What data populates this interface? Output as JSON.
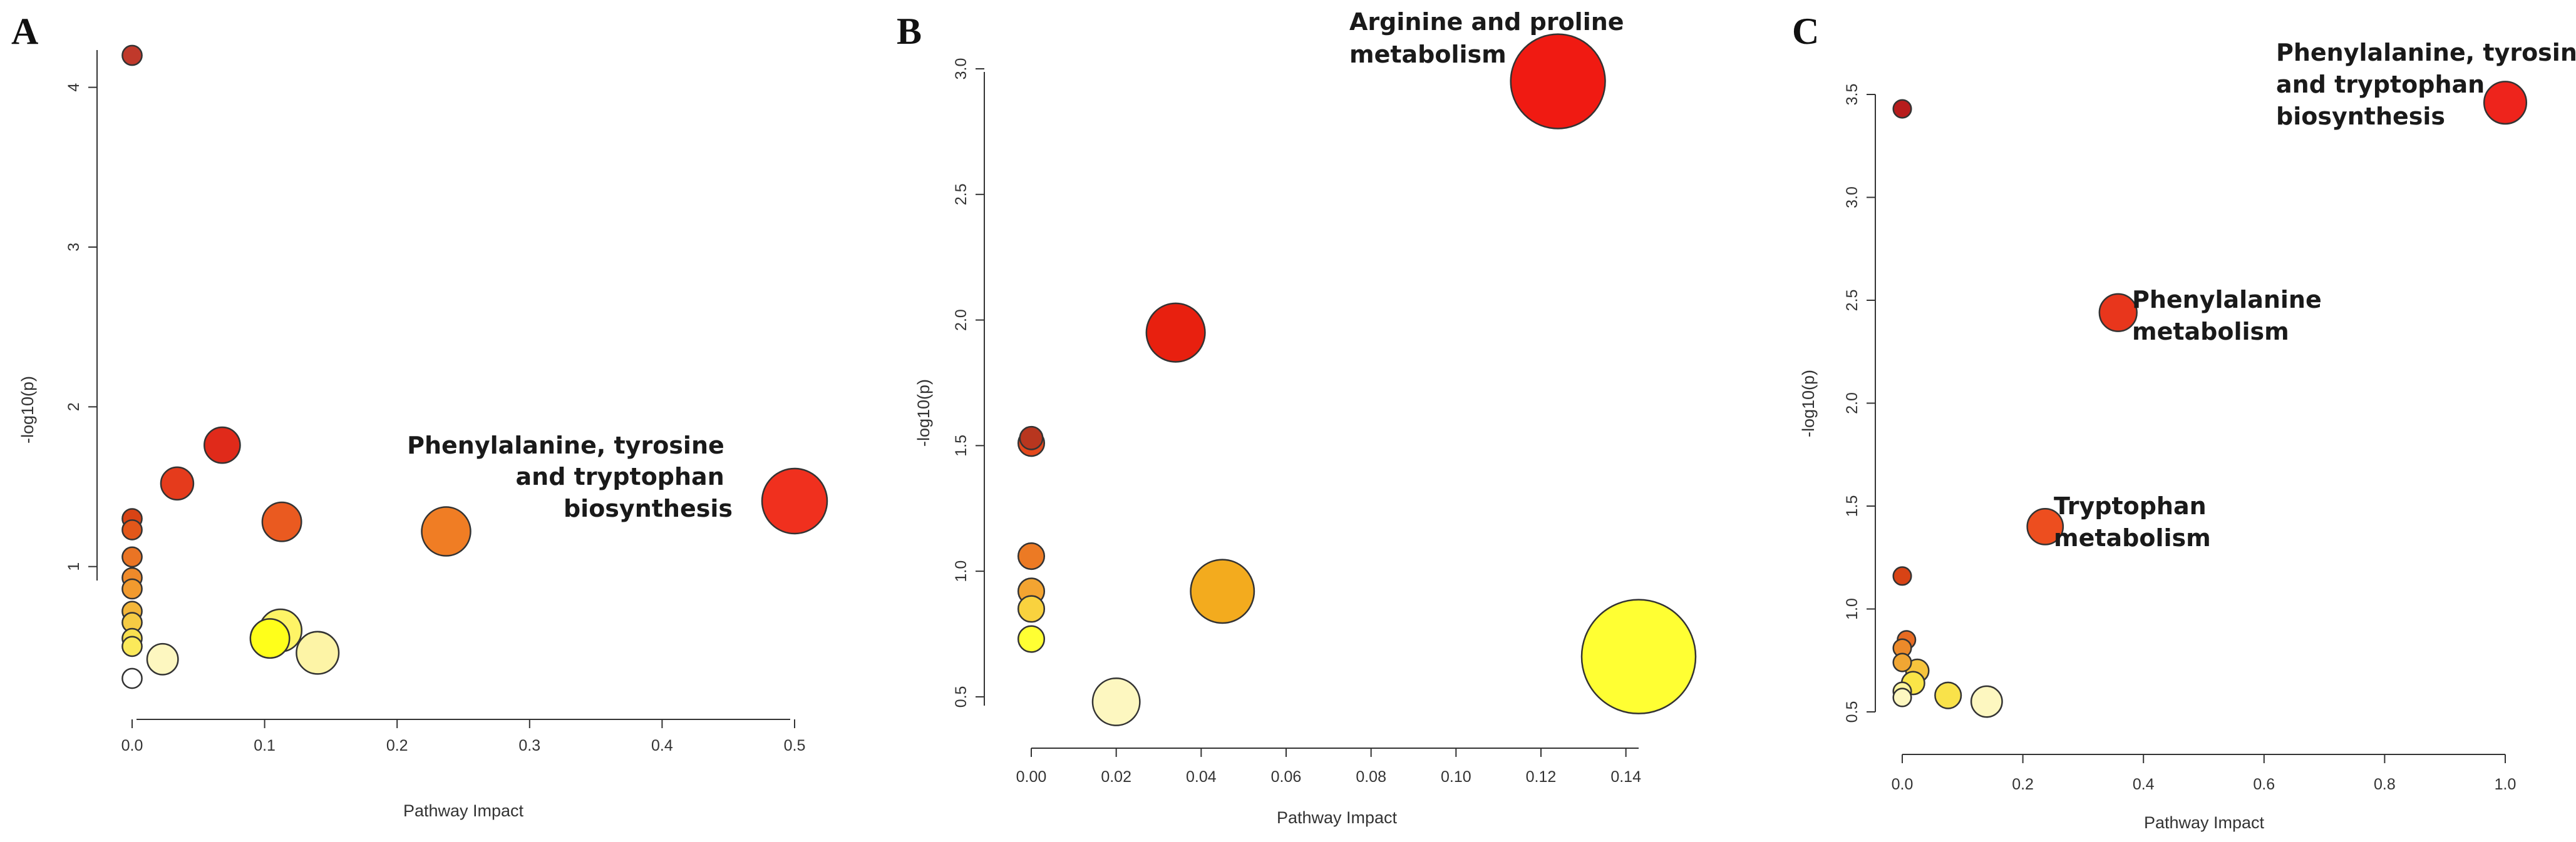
{
  "chart_data": [
    {
      "type": "scatter",
      "panel_label": "A",
      "xlabel": "Pathway Impact",
      "ylabel": "-log10(p)",
      "xlim": [
        0,
        0.5
      ],
      "ylim": [
        0.2,
        4.3
      ],
      "x_ticks": [
        0,
        0.1,
        0.2,
        0.3,
        0.4,
        0.5
      ],
      "x_tick_labels": [
        "0.0",
        "0.1",
        "0.2",
        "0.3",
        "0.4",
        "0.5"
      ],
      "y_ticks": [
        1,
        2,
        3,
        4
      ],
      "y_tick_labels": [
        "1",
        "2",
        "3",
        "4"
      ],
      "points": [
        {
          "x": 0.0,
          "y": 4.2,
          "size": 0.6,
          "color": "#c0392b"
        },
        {
          "x": 0.0,
          "y": 1.3,
          "size": 0.6,
          "color": "#d84315"
        },
        {
          "x": 0.0,
          "y": 1.23,
          "size": 0.6,
          "color": "#e2571a"
        },
        {
          "x": 0.0,
          "y": 1.06,
          "size": 0.6,
          "color": "#ea7424"
        },
        {
          "x": 0.0,
          "y": 0.93,
          "size": 0.6,
          "color": "#ef8a2a"
        },
        {
          "x": 0.0,
          "y": 0.86,
          "size": 0.6,
          "color": "#f19a2e"
        },
        {
          "x": 0.0,
          "y": 0.72,
          "size": 0.6,
          "color": "#f3b63a"
        },
        {
          "x": 0.0,
          "y": 0.65,
          "size": 0.6,
          "color": "#f6cb44"
        },
        {
          "x": 0.0,
          "y": 0.55,
          "size": 0.6,
          "color": "#f9e04f"
        },
        {
          "x": 0.0,
          "y": 0.5,
          "size": 0.6,
          "color": "#fbe95a"
        },
        {
          "x": 0.0,
          "y": 0.3,
          "size": 0.6,
          "color": "#ffffff"
        },
        {
          "x": 0.034,
          "y": 1.52,
          "size": 1.0,
          "color": "#e53b1c"
        },
        {
          "x": 0.068,
          "y": 1.76,
          "size": 1.1,
          "color": "#e02a1a"
        },
        {
          "x": 0.113,
          "y": 1.28,
          "size": 1.2,
          "color": "#ea5a20"
        },
        {
          "x": 0.237,
          "y": 1.22,
          "size": 1.5,
          "color": "#f07d24"
        },
        {
          "x": 0.5,
          "y": 1.41,
          "size": 2.0,
          "color": "#f0301e"
        },
        {
          "x": 0.023,
          "y": 0.42,
          "size": 0.95,
          "color": "#fdf7c0"
        },
        {
          "x": 0.104,
          "y": 0.55,
          "size": 1.2,
          "color": "#ffff1a"
        },
        {
          "x": 0.112,
          "y": 0.6,
          "size": 1.3,
          "color": "#fef466"
        },
        {
          "x": 0.14,
          "y": 0.46,
          "size": 1.3,
          "color": "#fdf4a6"
        }
      ],
      "annotations": [
        {
          "lines": [
            "Phenylalanine, tyrosine",
            "and tryptophan",
            "biosynthesis"
          ],
          "x": 0.5,
          "y": 1.41
        }
      ]
    },
    {
      "type": "scatter",
      "panel_label": "B",
      "xlabel": "Pathway Impact",
      "ylabel": "-log10(p)",
      "xlim": [
        0,
        0.143
      ],
      "ylim": [
        0.45,
        3.0
      ],
      "x_ticks": [
        0,
        0.02,
        0.04,
        0.06,
        0.08,
        0.1,
        0.12,
        0.14
      ],
      "x_tick_labels": [
        "0.00",
        "0.02",
        "0.04",
        "0.06",
        "0.08",
        "0.10",
        "0.12",
        "0.14"
      ],
      "y_ticks": [
        0.5,
        1.0,
        1.5,
        2.0,
        2.5,
        3.0
      ],
      "y_tick_labels": [
        "0.5",
        "1.0",
        "1.5",
        "2.0",
        "2.5",
        "3.0"
      ],
      "points": [
        {
          "x": 0.0,
          "y": 1.53,
          "size": 0.7,
          "color": "#b8361f"
        },
        {
          "x": 0.0,
          "y": 1.51,
          "size": 0.8,
          "color": "#e4481c"
        },
        {
          "x": 0.0,
          "y": 1.06,
          "size": 0.8,
          "color": "#ec7a24"
        },
        {
          "x": 0.0,
          "y": 0.92,
          "size": 0.8,
          "color": "#f3a431"
        },
        {
          "x": 0.0,
          "y": 0.85,
          "size": 0.8,
          "color": "#f9d23e"
        },
        {
          "x": 0.0,
          "y": 0.73,
          "size": 0.8,
          "color": "#ffff33"
        },
        {
          "x": 0.02,
          "y": 0.48,
          "size": 1.45,
          "color": "#fdf7c0"
        },
        {
          "x": 0.034,
          "y": 1.95,
          "size": 1.8,
          "color": "#e8200f"
        },
        {
          "x": 0.045,
          "y": 0.92,
          "size": 1.95,
          "color": "#f3ab1e"
        },
        {
          "x": 0.124,
          "y": 2.95,
          "size": 2.9,
          "color": "#f01a12"
        },
        {
          "x": 0.143,
          "y": 0.66,
          "size": 3.5,
          "color": "#ffff33"
        }
      ],
      "annotations": [
        {
          "lines": [
            "Arginine and proline",
            "metabolism"
          ],
          "x": 0.124,
          "y": 2.95
        }
      ]
    },
    {
      "type": "scatter",
      "panel_label": "C",
      "xlabel": "Pathway Impact",
      "ylabel": "-log10(p)",
      "xlim": [
        0,
        1.0
      ],
      "ylim": [
        0.5,
        3.5
      ],
      "x_ticks": [
        0,
        0.2,
        0.4,
        0.6,
        0.8,
        1.0
      ],
      "x_tick_labels": [
        "0.0",
        "0.2",
        "0.4",
        "0.6",
        "0.8",
        "1.0"
      ],
      "y_ticks": [
        0.5,
        1.0,
        1.5,
        2.0,
        2.5,
        3.0,
        3.5
      ],
      "y_tick_labels": [
        "0.5",
        "1.0",
        "1.5",
        "2.0",
        "2.5",
        "3.0",
        "3.5"
      ],
      "points": [
        {
          "x": 0.0,
          "y": 3.43,
          "size": 0.55,
          "color": "#b71c1c"
        },
        {
          "x": 0.0,
          "y": 1.16,
          "size": 0.55,
          "color": "#d84315"
        },
        {
          "x": 0.007,
          "y": 0.85,
          "size": 0.55,
          "color": "#e66b22"
        },
        {
          "x": 0.0,
          "y": 0.81,
          "size": 0.55,
          "color": "#ec8a2a"
        },
        {
          "x": 0.0,
          "y": 0.74,
          "size": 0.55,
          "color": "#f1a633"
        },
        {
          "x": 0.025,
          "y": 0.7,
          "size": 0.7,
          "color": "#f6c43d"
        },
        {
          "x": 0.018,
          "y": 0.64,
          "size": 0.7,
          "color": "#fae548"
        },
        {
          "x": 0.0,
          "y": 0.6,
          "size": 0.55,
          "color": "#fdf5a0"
        },
        {
          "x": 0.0,
          "y": 0.57,
          "size": 0.55,
          "color": "#fdf7c0"
        },
        {
          "x": 0.076,
          "y": 0.58,
          "size": 0.8,
          "color": "#f9e24a"
        },
        {
          "x": 0.14,
          "y": 0.55,
          "size": 0.95,
          "color": "#fdf7c0"
        },
        {
          "x": 0.237,
          "y": 1.4,
          "size": 1.1,
          "color": "#ed4e1f"
        },
        {
          "x": 0.358,
          "y": 2.44,
          "size": 1.15,
          "color": "#e8361c"
        },
        {
          "x": 1.0,
          "y": 3.46,
          "size": 1.3,
          "color": "#ee241c"
        }
      ],
      "annotations": [
        {
          "lines": [
            "Phenylalanine, tyrosine",
            "and tryptophan",
            "biosynthesis"
          ],
          "x": 1.0,
          "y": 3.46
        },
        {
          "lines": [
            "Phenylalanine",
            "metabolism"
          ],
          "x": 0.358,
          "y": 2.44
        },
        {
          "lines": [
            "Tryptophan",
            "metabolism"
          ],
          "x": 0.237,
          "y": 1.4
        }
      ]
    }
  ]
}
